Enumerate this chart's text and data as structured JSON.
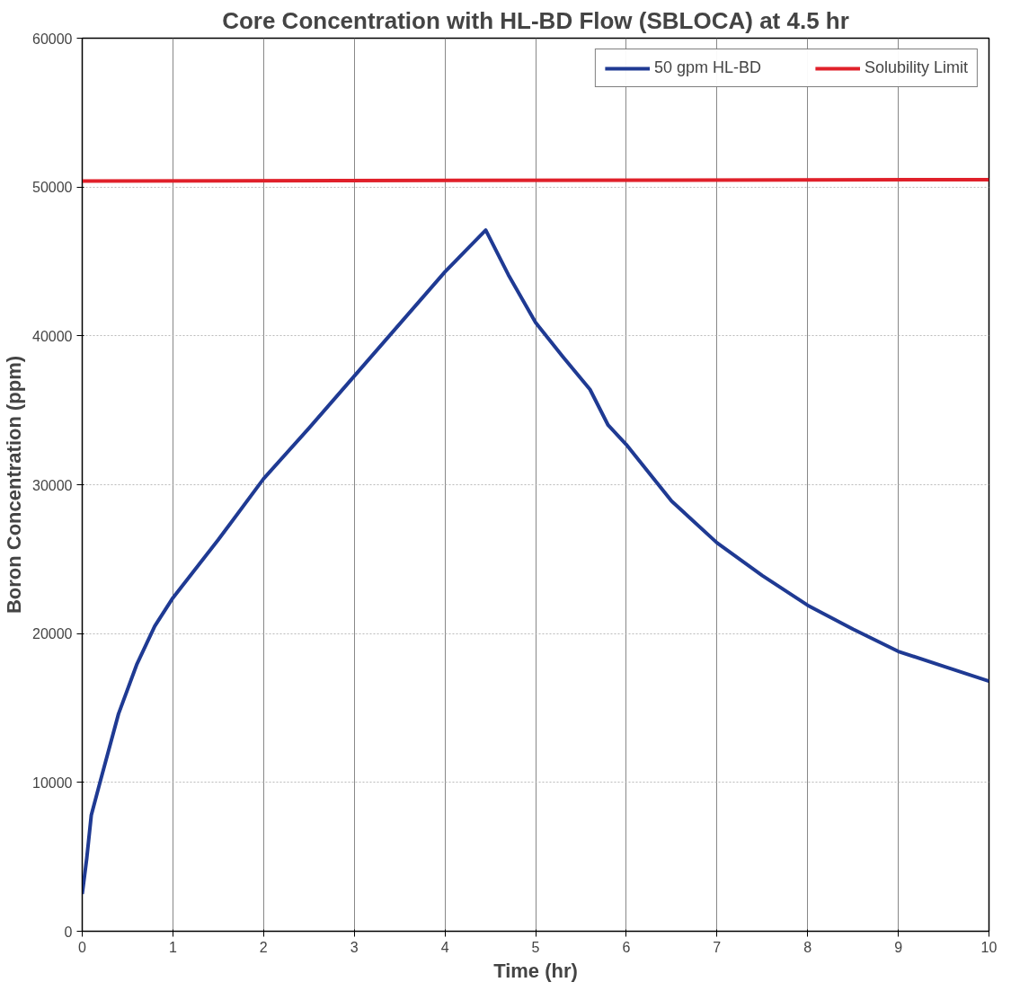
{
  "chart_data": {
    "type": "line",
    "title": "Core Concentration with HL-BD Flow (SBLOCA) at 4.5 hr",
    "xlabel": "Time (hr)",
    "ylabel": "Boron Concentration (ppm)",
    "xlim": [
      0,
      10
    ],
    "xticks": [
      0,
      1,
      2,
      3,
      4,
      5,
      6,
      7,
      8,
      9,
      10
    ],
    "ylim": [
      0,
      60000
    ],
    "yticks": [
      0,
      10000,
      20000,
      30000,
      40000,
      50000,
      60000
    ],
    "grid": true,
    "legend": "top right",
    "marker": "none",
    "line_style": "solid",
    "series": [
      {
        "name": "50 gpm HL-BD",
        "color": "#1f3a93",
        "x": [
          0,
          0.05,
          0.1,
          0.2,
          0.4,
          0.6,
          0.8,
          1.0,
          1.5,
          2.0,
          2.5,
          3.0,
          3.5,
          4.0,
          4.45,
          4.7,
          5.0,
          5.3,
          5.6,
          5.8,
          6.0,
          6.5,
          7.0,
          7.5,
          8.0,
          8.5,
          9.0,
          9.5,
          10
        ],
        "values": [
          2500,
          4900,
          7800,
          10100,
          14600,
          17900,
          20500,
          22400,
          26300,
          30400,
          33800,
          37300,
          40800,
          44300,
          47100,
          44100,
          40900,
          38600,
          36400,
          34000,
          32700,
          28900,
          26100,
          23900,
          21900,
          20300,
          18800,
          17800,
          16800
        ]
      },
      {
        "name": "Solubility Limit",
        "color": "#e0202a",
        "x": [
          0,
          10
        ],
        "values": [
          50400,
          50500
        ]
      }
    ]
  }
}
